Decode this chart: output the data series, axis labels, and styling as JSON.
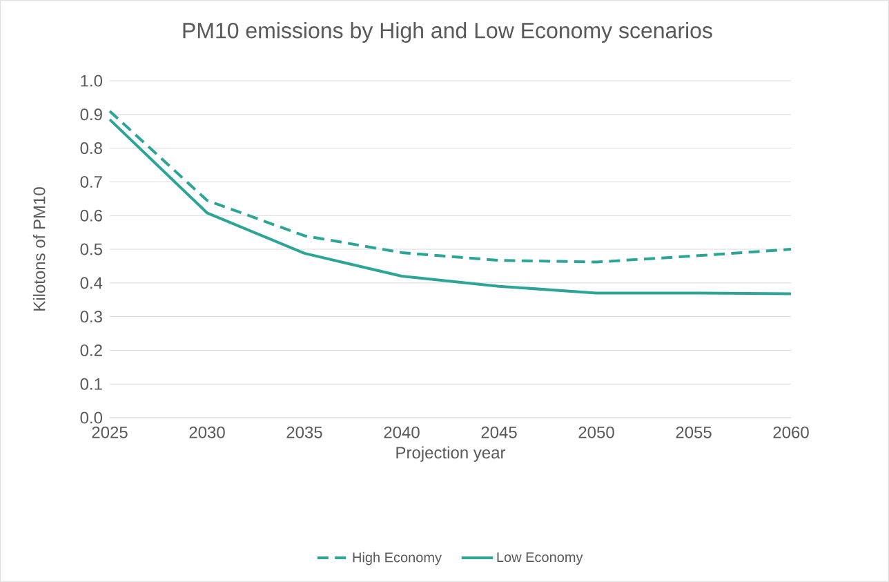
{
  "chart_data": {
    "type": "line",
    "title": "PM10 emissions by High and Low Economy scenarios",
    "xlabel": "Projection year",
    "ylabel": "Kilotons of PM10",
    "x": [
      2025,
      2030,
      2035,
      2040,
      2045,
      2050,
      2055,
      2060
    ],
    "series": [
      {
        "name": "High Economy",
        "color": "#2ca498",
        "line_style": "dashed",
        "values": [
          0.91,
          0.645,
          0.54,
          0.49,
          0.467,
          0.462,
          0.48,
          0.5
        ]
      },
      {
        "name": "Low Economy",
        "color": "#2ca498",
        "line_style": "solid",
        "values": [
          0.885,
          0.608,
          0.488,
          0.42,
          0.39,
          0.37,
          0.37,
          0.368
        ]
      }
    ],
    "xlim": [
      2025,
      2060
    ],
    "ylim": [
      0,
      1
    ],
    "xticks": [
      2025,
      2030,
      2035,
      2040,
      2045,
      2050,
      2055,
      2060
    ],
    "yticks": [
      {
        "value": 0,
        "label": "0.0"
      },
      0.1,
      0.2,
      0.3,
      0.4,
      0.5,
      0.6,
      0.7,
      0.8,
      0.9,
      {
        "value": 1,
        "label": "1.0"
      }
    ],
    "grid": "y",
    "legend": "bottom"
  }
}
